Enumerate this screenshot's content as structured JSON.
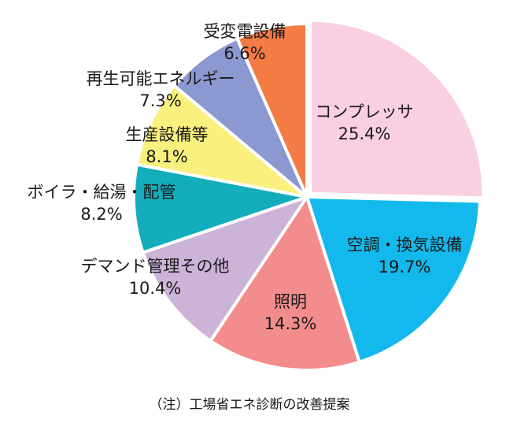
{
  "chart_data": {
    "type": "pie",
    "title": "",
    "note": "（注）工場省エネ診断の改善提案",
    "start": "12 o'clock",
    "direction": "clockwise",
    "slices": [
      {
        "label": "コンプレッサ",
        "value": 25.4,
        "display": "25.4%",
        "color": "#f9cfe1"
      },
      {
        "label": "空調・換気設備",
        "value": 19.7,
        "display": "19.7%",
        "color": "#13b9ec"
      },
      {
        "label": "照明",
        "value": 14.3,
        "display": "14.3%",
        "color": "#f38c8c"
      },
      {
        "label": "デマンド管理その他",
        "value": 10.4,
        "display": "10.4%",
        "color": "#ccb3d8"
      },
      {
        "label": "ボイラ・給湯・配管",
        "value": 8.2,
        "display": "8.2%",
        "color": "#13adbc"
      },
      {
        "label": "生産設備等",
        "value": 8.1,
        "display": "8.1%",
        "color": "#f9f07e"
      },
      {
        "label": "再生可能エネルギー",
        "value": 7.3,
        "display": "7.3%",
        "color": "#8c98d0"
      },
      {
        "label": "受変電設備",
        "value": 6.6,
        "display": "6.6%",
        "color": "#f57b45"
      }
    ]
  }
}
